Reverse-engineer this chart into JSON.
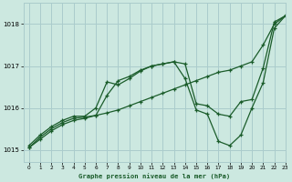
{
  "title": "Graphe pression niveau de la mer (hPa)",
  "background_color": "#cce8e0",
  "grid_color": "#aacccc",
  "line_color": "#1a5c2a",
  "xlim": [
    -0.5,
    23
  ],
  "ylim": [
    1014.7,
    1018.5
  ],
  "yticks": [
    1015,
    1016,
    1017,
    1018
  ],
  "xticks": [
    0,
    1,
    2,
    3,
    4,
    5,
    6,
    7,
    8,
    9,
    10,
    11,
    12,
    13,
    14,
    15,
    16,
    17,
    18,
    19,
    20,
    21,
    22,
    23
  ],
  "series1_x": [
    0,
    1,
    2,
    3,
    4,
    5,
    6,
    7,
    8,
    9,
    10,
    11,
    12,
    13,
    14,
    15,
    16,
    17,
    18,
    19,
    20,
    21,
    22,
    23
  ],
  "series1_y": [
    1015.05,
    1015.25,
    1015.45,
    1015.6,
    1015.7,
    1015.75,
    1015.82,
    1015.88,
    1015.95,
    1016.05,
    1016.15,
    1016.25,
    1016.35,
    1016.45,
    1016.55,
    1016.65,
    1016.75,
    1016.85,
    1016.9,
    1017.0,
    1017.1,
    1017.5,
    1018.0,
    1018.2
  ],
  "series2_x": [
    0,
    1,
    2,
    3,
    4,
    5,
    6,
    7,
    8,
    9,
    10,
    11,
    12,
    13,
    14,
    15,
    16,
    17,
    18,
    19,
    20,
    21,
    22,
    23
  ],
  "series2_y": [
    1015.1,
    1015.35,
    1015.55,
    1015.7,
    1015.8,
    1015.8,
    1016.0,
    1016.62,
    1016.55,
    1016.7,
    1016.88,
    1017.0,
    1017.05,
    1017.1,
    1017.05,
    1016.1,
    1016.05,
    1015.85,
    1015.8,
    1016.15,
    1016.2,
    1016.95,
    1018.05,
    1018.2
  ],
  "series3_x": [
    0,
    1,
    2,
    3,
    4,
    5,
    6,
    7,
    8,
    9,
    10,
    11,
    12,
    13,
    14,
    15,
    16,
    17,
    18,
    19,
    20,
    21,
    22,
    23
  ],
  "series3_y": [
    1015.05,
    1015.3,
    1015.5,
    1015.65,
    1015.75,
    1015.78,
    1015.82,
    1016.3,
    1016.65,
    1016.75,
    1016.9,
    1017.0,
    1017.05,
    1017.1,
    1016.7,
    1015.95,
    1015.85,
    1015.2,
    1015.1,
    1015.35,
    1016.0,
    1016.6,
    1017.9,
    1018.2
  ]
}
